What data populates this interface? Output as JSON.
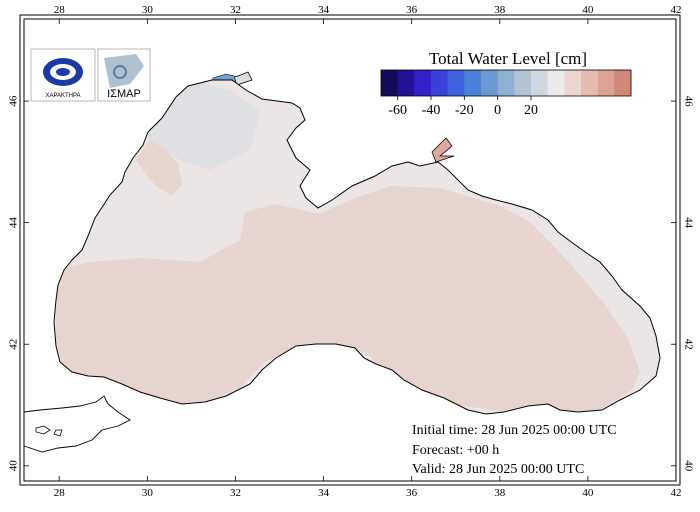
{
  "legend": {
    "title": "Total Water Level [cm]",
    "ticks": [
      "-60",
      "-40",
      "-20",
      "0",
      "20"
    ],
    "colors": [
      "#140a5a",
      "#241296",
      "#3420c8",
      "#3b40dc",
      "#3e62e0",
      "#4a80d8",
      "#6a98d0",
      "#8eb0d2",
      "#b0c4d6",
      "#cfd8e0",
      "#ebebeb",
      "#eed6d0",
      "#e6bcb2",
      "#dca294",
      "#d08876"
    ]
  },
  "axes": {
    "x_ticks": [
      "28",
      "30",
      "32",
      "34",
      "36",
      "38",
      "40",
      "42"
    ],
    "y_ticks": [
      "40",
      "42",
      "44",
      "46"
    ]
  },
  "info": {
    "initial": "Initial time: 28 Jun 2025 00:00 UTC",
    "forecast": "Forecast: +00 h",
    "valid": "Valid: 28 Jun 2025 00:00 UTC"
  },
  "logos": {
    "left_text": "ΧΑΡΑΚΤΗΡΑ",
    "right_text": "ΙΣΜΑΡ"
  },
  "colors": {
    "water_main": "#e8d4cf",
    "water_light": "#ebe5e5",
    "water_blue": "#d6dde4"
  }
}
